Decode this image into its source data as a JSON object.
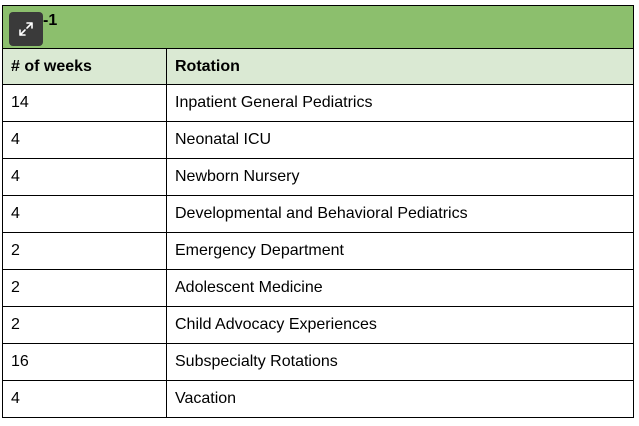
{
  "table": {
    "title": "-1",
    "expand_icon": "expand-arrows-icon",
    "headers": [
      "# of weeks",
      "Rotation"
    ],
    "rows": [
      {
        "weeks": "14",
        "rotation": "Inpatient General Pediatrics"
      },
      {
        "weeks": "4",
        "rotation": "Neonatal ICU"
      },
      {
        "weeks": "4",
        "rotation": "Newborn Nursery"
      },
      {
        "weeks": "4",
        "rotation": "Developmental and Behavioral Pediatrics"
      },
      {
        "weeks": "2",
        "rotation": "Emergency Department"
      },
      {
        "weeks": "2",
        "rotation": "Adolescent Medicine"
      },
      {
        "weeks": "2",
        "rotation": "Child Advocacy Experiences"
      },
      {
        "weeks": "16",
        "rotation": "Subspecialty Rotations"
      },
      {
        "weeks": "4",
        "rotation": "Vacation"
      }
    ],
    "colors": {
      "title_bg": "#8cbf6d",
      "header_bg": "#dae9d3",
      "button_bg": "#3a3a3a"
    }
  }
}
